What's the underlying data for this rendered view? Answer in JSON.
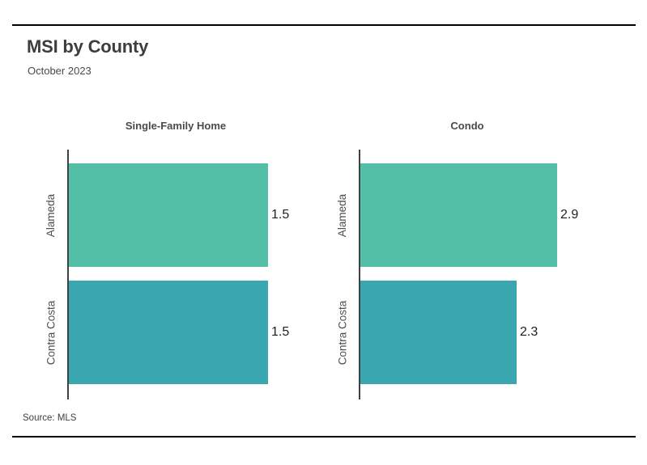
{
  "header": {
    "title": "MSI by County",
    "subtitle": "October 2023"
  },
  "footer": {
    "source": "Source: MLS"
  },
  "colors": {
    "alameda_bar": "#52bfa6",
    "contra_costa_bar": "#3aa6b0",
    "rule": "#000000",
    "axis_line": "#3f4245",
    "title_text": "#3d3d3d",
    "category_text": "#4d4d4d",
    "value_text": "#1f1f1f"
  },
  "chart_data": [
    {
      "type": "bar",
      "orientation": "horizontal",
      "title": "Single-Family Home",
      "categories": [
        "Alameda",
        "Contra Costa"
      ],
      "values": [
        1.5,
        1.5
      ],
      "value_labels": [
        "1.5",
        "1.5"
      ],
      "xlim": [
        0,
        1.62
      ],
      "bar_colors": [
        "#52bfa6",
        "#3aa6b0"
      ],
      "grid": false,
      "legend": false
    },
    {
      "type": "bar",
      "orientation": "horizontal",
      "title": "Condo",
      "categories": [
        "Alameda",
        "Contra Costa"
      ],
      "values": [
        2.9,
        2.3
      ],
      "value_labels": [
        "2.9",
        "2.3"
      ],
      "xlim": [
        0,
        3.17
      ],
      "bar_colors": [
        "#52bfa6",
        "#3aa6b0"
      ],
      "grid": false,
      "legend": false
    }
  ]
}
